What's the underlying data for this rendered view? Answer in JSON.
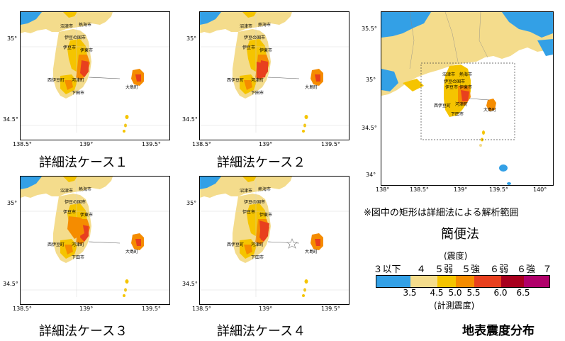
{
  "detail_ticks": {
    "x": [
      "138.5°",
      "139°",
      "139.5°"
    ],
    "y": [
      "35°",
      "34.5°"
    ]
  },
  "simple_ticks": {
    "x": [
      "138°",
      "138.5°",
      "139°",
      "139.5°",
      "140°"
    ],
    "y": [
      "35.5°",
      "35°",
      "34.5°",
      "34°"
    ]
  },
  "panels": [
    {
      "caption": "詳細法ケース１",
      "cities": {
        "numazu": "沼津市",
        "atami": "熱海市",
        "izunokuni": "伊豆の国市",
        "izu": "伊豆市",
        "ito": "伊東市",
        "nishiizu": "西伊豆町",
        "kawazu": "河津町",
        "shimoda": "下田市",
        "oshima": "大島町"
      },
      "star": false
    },
    {
      "caption": "詳細法ケース２",
      "cities": {
        "numazu": "沼津市",
        "atami": "熱海市",
        "izunokuni": "伊豆の国市",
        "izu": "伊豆市",
        "ito": "伊東市",
        "nishiizu": "西伊豆町",
        "kawazu": "河津町",
        "shimoda": "下田市",
        "oshima": "大島町"
      },
      "star": false
    },
    {
      "caption": "詳細法ケース３",
      "cities": {
        "numazu": "沼津市",
        "atami": "熱海市",
        "izunokuni": "伊豆の国市",
        "izu": "伊豆市",
        "ito": "伊東市",
        "nishiizu": "西伊豆町",
        "kawazu": "河津町",
        "shimoda": "下田市",
        "oshima": "大島町"
      },
      "star": false
    },
    {
      "caption": "詳細法ケース４",
      "cities": {
        "numazu": "沼津市",
        "atami": "熱海市",
        "izunokuni": "伊豆の国市",
        "izu": "伊豆市",
        "ito": "伊東市",
        "nishiizu": "西伊豆町",
        "kawazu": "河津町",
        "shimoda": "下田市",
        "oshima": "大島町"
      },
      "star": true
    }
  ],
  "simple": {
    "caption": "簡便法",
    "note": "※図中の矩形は詳細法による解析範囲",
    "cities": {
      "numazu": "沼津市",
      "atami": "熱海市",
      "izunokuni": "伊豆の国市",
      "izu": "伊豆市",
      "ito": "伊東市",
      "nishiizu": "西伊豆町",
      "kawazu": "河津町",
      "shimoda": "下田市",
      "oshima": "大島町"
    }
  },
  "legend": {
    "title": "(震度)",
    "subtitle": "(計測震度)",
    "heading": "地表震度分布",
    "classes": [
      "３以下",
      "４",
      "５弱",
      "５強",
      "６弱",
      "６強",
      "７"
    ],
    "values": [
      "3.5",
      "4.5",
      "5.0",
      "5.5",
      "6.0",
      "6.5"
    ],
    "colors": [
      "#33a0e6",
      "#f4dc8c",
      "#f5c400",
      "#f58c00",
      "#e8401e",
      "#a8001e",
      "#b0006a"
    ]
  }
}
